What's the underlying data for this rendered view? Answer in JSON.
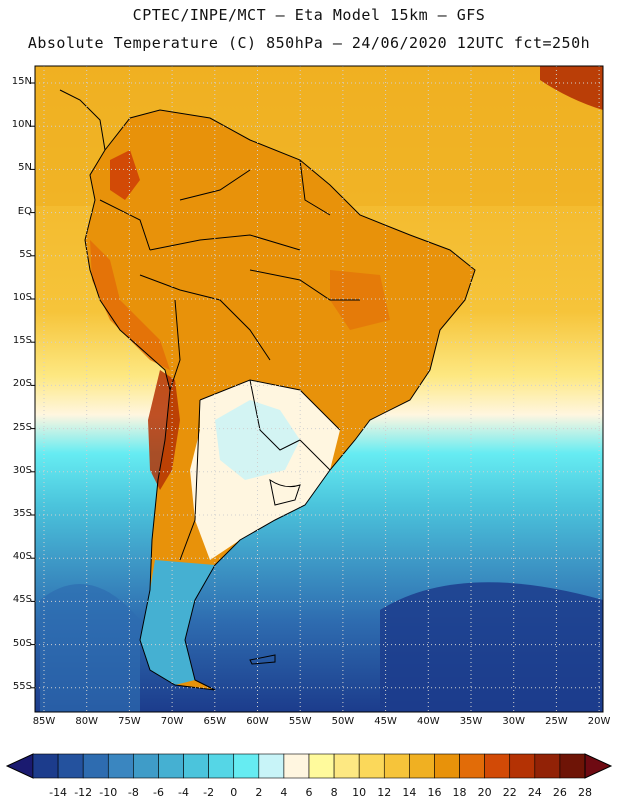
{
  "title_line1": "CPTEC/INPE/MCT –  Eta Model 15km – GFS",
  "title_line2": "Absolute Temperature (C) 850hPa – 24/06/2020 12UTC fct=250h",
  "lat_labels": [
    "15N",
    "10N",
    "5N",
    "EQ",
    "5S",
    "10S",
    "15S",
    "20S",
    "25S",
    "30S",
    "35S",
    "40S",
    "45S",
    "50S",
    "55S"
  ],
  "lon_labels": [
    "85W",
    "80W",
    "75W",
    "70W",
    "65W",
    "60W",
    "55W",
    "50W",
    "45W",
    "40W",
    "35W",
    "30W",
    "25W",
    "20W"
  ],
  "colorbar": {
    "ticks": [
      "-14",
      "-12",
      "-10",
      "-8",
      "-6",
      "-4",
      "-2",
      "0",
      "2",
      "4",
      "6",
      "8",
      "10",
      "12",
      "14",
      "16",
      "18",
      "20",
      "22",
      "24",
      "26",
      "28"
    ],
    "colors": [
      "#1c3c8c",
      "#24529e",
      "#2e6cb0",
      "#3a86c0",
      "#3f9cc8",
      "#45b0d2",
      "#4bc4dc",
      "#55d6e6",
      "#66ecf2",
      "#c8f4f8",
      "#fff6e0",
      "#fffa9c",
      "#fde882",
      "#fbd85a",
      "#f6c43a",
      "#f0b022",
      "#e8920a",
      "#e26c08",
      "#d24a06",
      "#b43204",
      "#922206",
      "#6e1406"
    ],
    "arrow_left": "#1a1a70",
    "arrow_right": "#6e0a12"
  },
  "map": {
    "ocean_south_colors": [
      "#1c3c8c",
      "#2e6cb0",
      "#3f9cc8",
      "#4bc4dc",
      "#66ecf2"
    ],
    "land_color": "#e8920a",
    "ocean_tropical_color": "#f0b022",
    "andes_color": "#b43204",
    "transition_color": "#fde882"
  }
}
